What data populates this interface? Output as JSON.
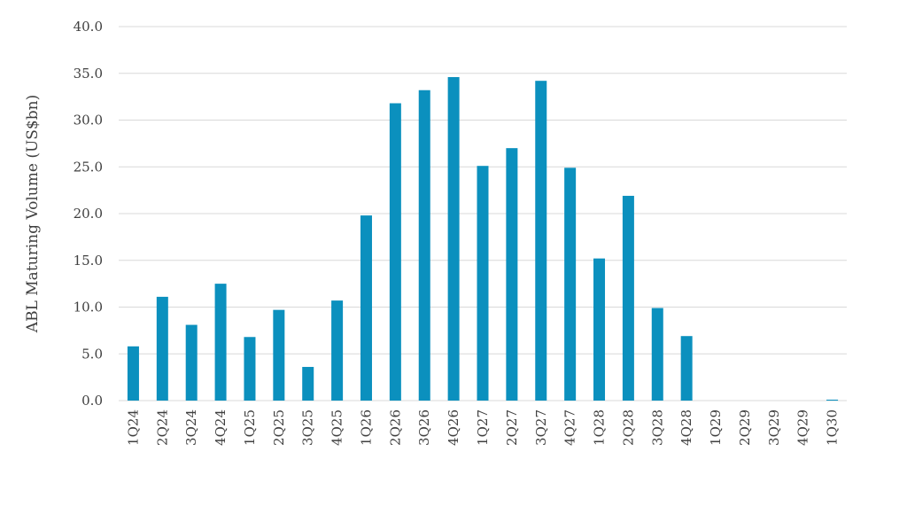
{
  "chart_data": {
    "type": "bar",
    "ylabel": "ABL Maturing Volume (US$bn)",
    "ylim": [
      0,
      40
    ],
    "yticks": [
      "0.0",
      "5.0",
      "10.0",
      "15.0",
      "20.0",
      "25.0",
      "30.0",
      "35.0",
      "40.0"
    ],
    "grid": true,
    "bar_color": "#0b90be",
    "categories": [
      "1Q24",
      "2Q24",
      "3Q24",
      "4Q24",
      "1Q25",
      "2Q25",
      "3Q25",
      "4Q25",
      "1Q26",
      "2Q26",
      "3Q26",
      "4Q26",
      "1Q27",
      "2Q27",
      "3Q27",
      "4Q27",
      "1Q28",
      "2Q28",
      "3Q28",
      "4Q28",
      "1Q29",
      "2Q29",
      "3Q29",
      "4Q29",
      "1Q30"
    ],
    "values": [
      5.8,
      11.1,
      8.1,
      12.5,
      6.8,
      9.7,
      3.6,
      10.7,
      19.8,
      31.8,
      33.2,
      34.6,
      25.1,
      27.0,
      34.2,
      24.9,
      15.2,
      21.9,
      9.9,
      6.9,
      0.0,
      0.0,
      0.0,
      0.0,
      0.1
    ]
  }
}
